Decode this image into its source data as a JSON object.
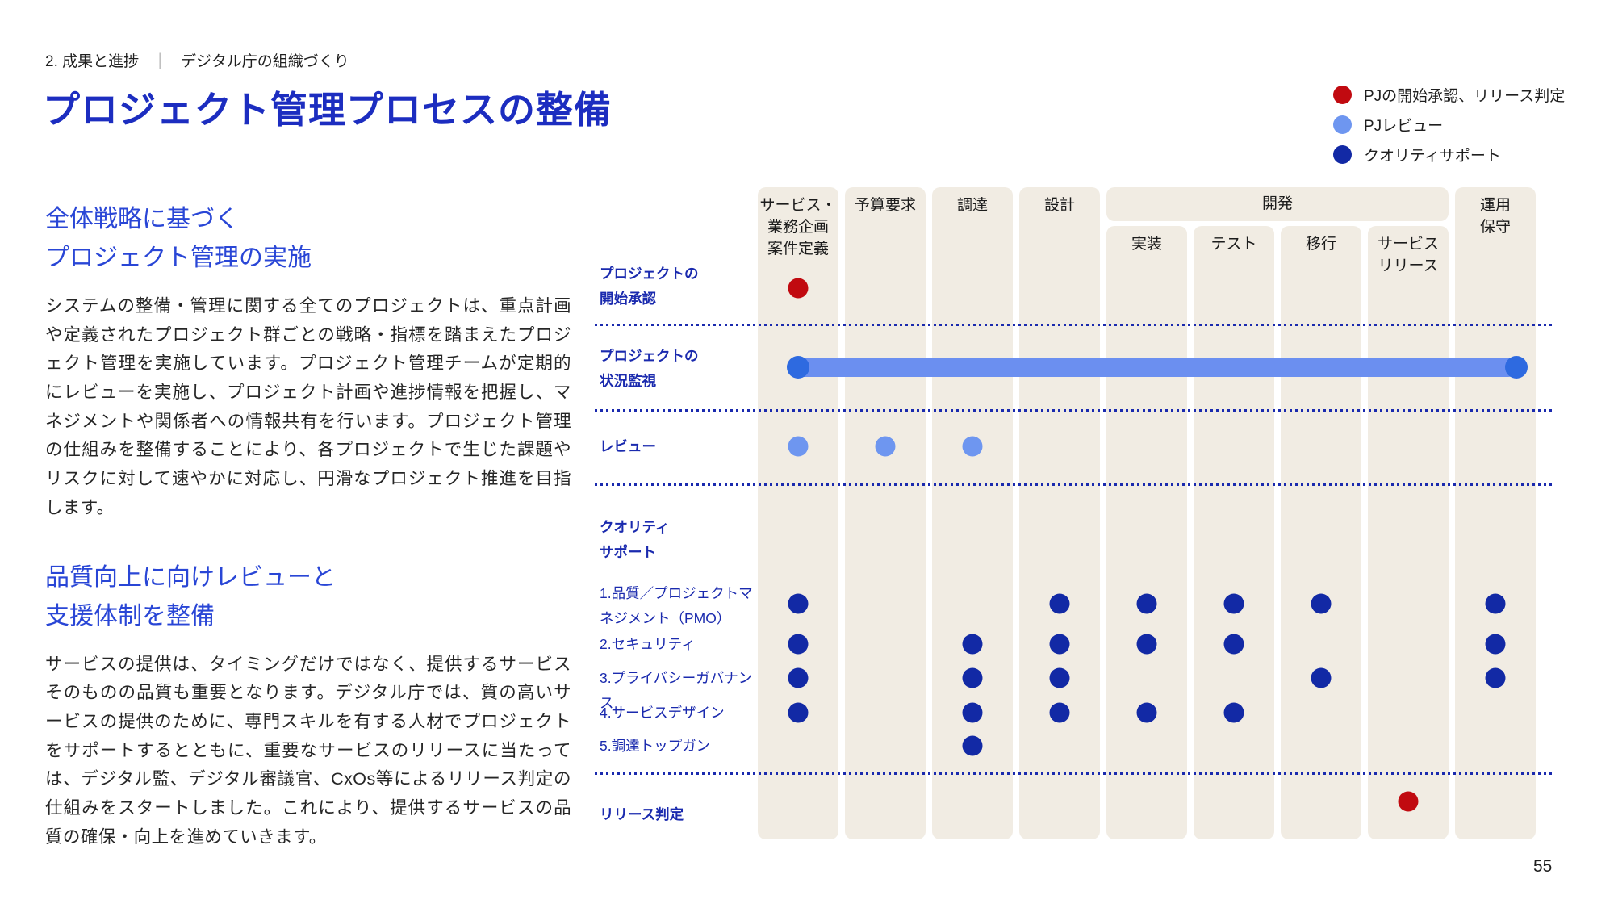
{
  "breadcrumb": {
    "section": "2. 成果と進捗",
    "separator": "｜",
    "subsection": "デジタル庁の組織づくり"
  },
  "title": "プロジェクト管理プロセスの整備",
  "legend": {
    "items": [
      {
        "id": "start-approval-release",
        "label": "PJの開始承認、リリース判定",
        "color": "#c10a10"
      },
      {
        "id": "pj-review",
        "label": "PJレビュー",
        "color": "#6e96f0"
      },
      {
        "id": "quality-support",
        "label": "クオリティサポート",
        "color": "#1229a5"
      }
    ]
  },
  "left_column": {
    "section1": {
      "heading_line1": "全体戦略に基づく",
      "heading_line2": "プロジェクト管理の実施",
      "body": "システムの整備・管理に関する全てのプロジェクトは、重点計画や定義されたプロジェクト群ごとの戦略・指標を踏まえたプロジェクト管理を実施しています。プロジェクト管理チームが定期的にレビューを実施し、プロジェクト計画や進捗情報を把握し、マネジメントや関係者への情報共有を行います。プロジェクト管理の仕組みを整備することにより、各プロジェクトで生じた課題やリスクに対して速やかに対応し、円滑なプロジェクト推進を目指します。"
    },
    "section2": {
      "heading_line1": "品質向上に向けレビューと",
      "heading_line2": "支援体制を整備",
      "body": "サービスの提供は、タイミングだけではなく、提供するサービスそのものの品質も重要となります。デジタル庁では、質の高いサービスの提供のために、専門スキルを有する人材でプロジェクトをサポートするとともに、重要なサービスのリリースに当たっては、デジタル監、デジタル審議官、CxOs等によるリリース判定の仕組みをスタートしました。これにより、提供するサービスの品質の確保・向上を進めていきます。"
    }
  },
  "matrix": {
    "group_label": "開発",
    "columns": [
      {
        "id": "service-planning",
        "label_lines": [
          "サービス・",
          "業務企画",
          "案件定義"
        ],
        "group": null
      },
      {
        "id": "budget-request",
        "label_lines": [
          "予算要求"
        ],
        "group": null
      },
      {
        "id": "procurement",
        "label_lines": [
          "調達"
        ],
        "group": null
      },
      {
        "id": "design",
        "label_lines": [
          "設計"
        ],
        "group": null
      },
      {
        "id": "implementation",
        "label_lines": [
          "実装"
        ],
        "group": "開発"
      },
      {
        "id": "test",
        "label_lines": [
          "テスト"
        ],
        "group": "開発"
      },
      {
        "id": "migration",
        "label_lines": [
          "移行"
        ],
        "group": "開発"
      },
      {
        "id": "service-release",
        "label_lines": [
          "サービス",
          "リリース"
        ],
        "group": "開発"
      },
      {
        "id": "operation-maintenance",
        "label_lines": [
          "運用",
          "保守"
        ],
        "group": null
      }
    ],
    "rows": [
      {
        "id": "project-start-approval",
        "label_lines": [
          "プロジェクトの",
          "開始承認"
        ],
        "bold": true,
        "marker": "red",
        "dots": [
          0
        ]
      },
      {
        "id": "project-status-monitoring",
        "label_lines": [
          "プロジェクトの",
          "状況監視"
        ],
        "bold": true,
        "marker": "bar",
        "bar_from": 0,
        "bar_to": 8,
        "dots": []
      },
      {
        "id": "review",
        "label_lines": [
          "レビュー"
        ],
        "bold": true,
        "marker": "light",
        "dots": [
          0,
          1,
          2
        ]
      },
      {
        "id": "quality-support-header",
        "label_lines": [
          "クオリティ",
          "サポート"
        ],
        "bold": true,
        "marker": "none",
        "dots": []
      },
      {
        "id": "quality-pmo",
        "label_lines": [
          "1.品質／プロジェクトマ",
          "ネジメント（PMO）"
        ],
        "bold": false,
        "marker": "navy",
        "dots": [
          0,
          3,
          4,
          5,
          6,
          8
        ]
      },
      {
        "id": "quality-security",
        "label_lines": [
          "2.セキュリティ"
        ],
        "bold": false,
        "marker": "navy",
        "dots": [
          0,
          2,
          3,
          4,
          5,
          8
        ]
      },
      {
        "id": "quality-privacy-governance",
        "label_lines": [
          "3.プライバシーガバナンス"
        ],
        "bold": false,
        "marker": "navy",
        "dots": [
          0,
          2,
          3,
          6,
          8
        ]
      },
      {
        "id": "quality-service-design",
        "label_lines": [
          "4.サービスデザイン"
        ],
        "bold": false,
        "marker": "navy",
        "dots": [
          0,
          2,
          3,
          4,
          5
        ]
      },
      {
        "id": "quality-procurement-topgun",
        "label_lines": [
          "5.調達トップガン"
        ],
        "bold": false,
        "marker": "navy",
        "dots": [
          2
        ]
      },
      {
        "id": "release-judgement",
        "label_lines": [
          "リリース判定"
        ],
        "bold": true,
        "marker": "red",
        "dots": [
          7
        ]
      }
    ]
  },
  "colors": {
    "red": "#c10a10",
    "light_blue": "#6e96f0",
    "navy": "#1229a5",
    "bar": "#6b8ff0",
    "bar_end": "#2e6ae0",
    "stripe": "#f1ece3",
    "dotted_line": "#1a2aae"
  },
  "page_number": "55"
}
